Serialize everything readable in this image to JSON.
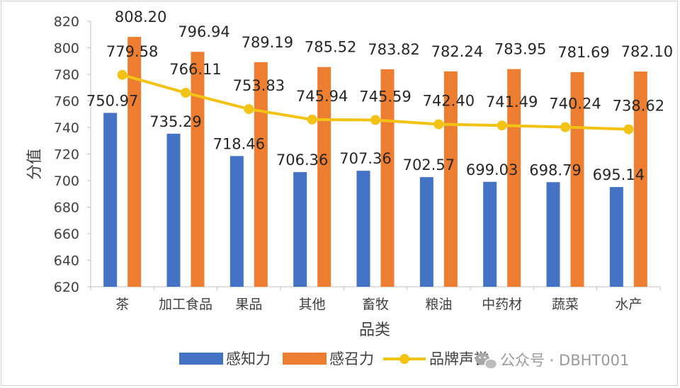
{
  "chart_data": {
    "type": "bar",
    "title": "",
    "xlabel": "品类",
    "ylabel": "分值",
    "ylim": [
      620,
      820
    ],
    "yticks": [
      620,
      640,
      660,
      680,
      700,
      720,
      740,
      760,
      780,
      800,
      820
    ],
    "categories": [
      "茶",
      "加工食品",
      "果品",
      "其他",
      "畜牧",
      "粮油",
      "中药材",
      "蔬菜",
      "水产"
    ],
    "series": [
      {
        "name": "感知力",
        "type": "bar",
        "color": "#4472C4",
        "values": [
          750.97,
          735.29,
          718.46,
          706.36,
          707.36,
          702.57,
          699.03,
          698.79,
          695.14
        ],
        "labels": [
          "750.97",
          "735.29",
          "718.46",
          "706.36",
          "707.36",
          "702.57",
          "699.03",
          "698.79",
          "695.14"
        ]
      },
      {
        "name": "感召力",
        "type": "bar",
        "color": "#ED7D31",
        "values": [
          808.2,
          796.94,
          789.19,
          785.52,
          783.82,
          782.24,
          783.95,
          781.69,
          782.1
        ],
        "labels": [
          "808.20",
          "796.94",
          "789.19",
          "785.52",
          "783.82",
          "782.24",
          "783.95",
          "781.69",
          "782.10"
        ]
      },
      {
        "name": "品牌声誉",
        "type": "line",
        "color": "#F2C314",
        "values": [
          779.58,
          766.11,
          753.83,
          745.94,
          745.59,
          742.4,
          741.49,
          740.24,
          738.62
        ],
        "labels": [
          "779.58",
          "766.11",
          "753.83",
          "745.94",
          "745.59",
          "742.40",
          "741.49",
          "740.24",
          "738.62"
        ]
      }
    ],
    "legend": "bottom",
    "grid": false
  },
  "watermark": {
    "icon": "wechat-icon",
    "text": "公众号 · DBHT001"
  }
}
